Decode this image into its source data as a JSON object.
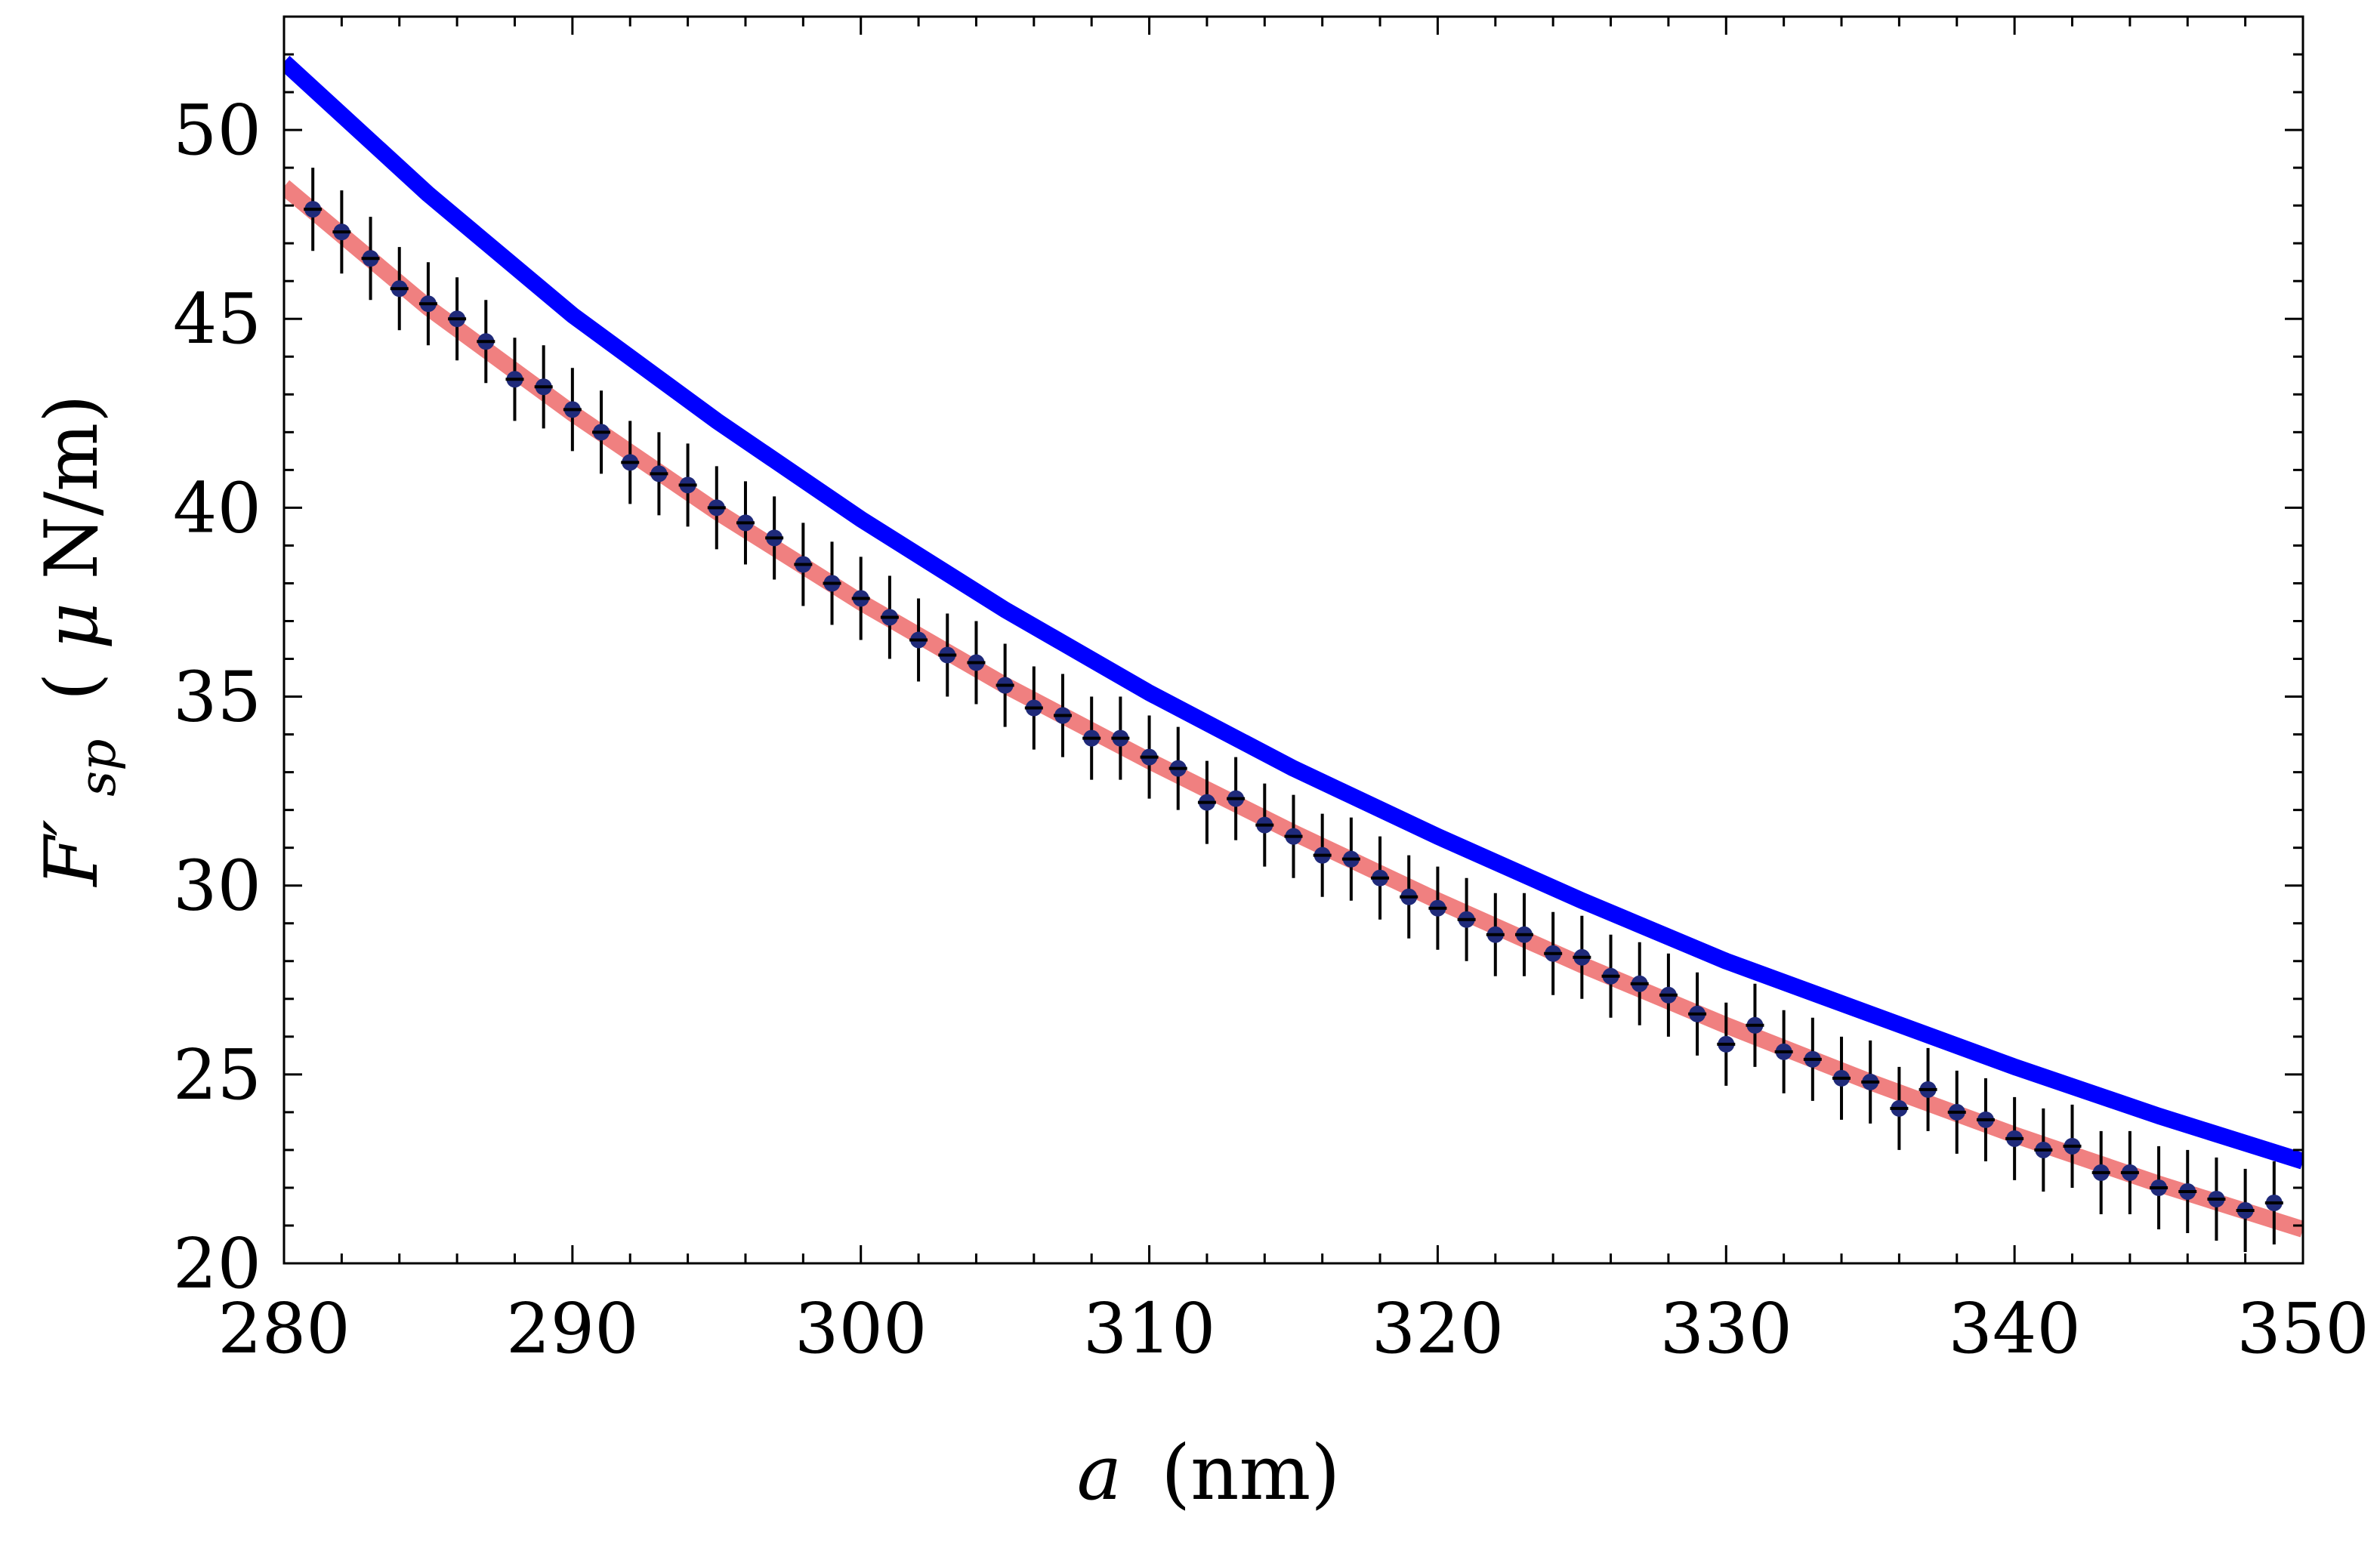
{
  "chart_data": {
    "type": "scatter",
    "xlabel": {
      "var": "a",
      "unit": "(nm)"
    },
    "ylabel": {
      "var": "F′",
      "sub": "sp",
      "pre_unit": "(",
      "mu": "μ",
      "unit": "N/m)"
    },
    "xlim": [
      280,
      350
    ],
    "ylim": [
      20,
      53
    ],
    "xticks": [
      280,
      290,
      300,
      310,
      320,
      330,
      340,
      350
    ],
    "yticks": [
      20,
      25,
      30,
      35,
      40,
      45,
      50
    ],
    "grid": false,
    "legend": "none",
    "colors": {
      "upper_curve": "#0000ff",
      "lower_curve": "#f08080",
      "points": "#1f2a7a",
      "error_bars": "#000000"
    },
    "series": [
      {
        "type": "line",
        "x": [
          280,
          285,
          290,
          295,
          300,
          305,
          310,
          315,
          320,
          325,
          330,
          335,
          340,
          345,
          350
        ],
        "y": [
          51.8,
          48.3,
          45.1,
          42.3,
          39.7,
          37.3,
          35.1,
          33.1,
          31.3,
          29.6,
          28.0,
          26.6,
          25.2,
          23.9,
          22.7
        ]
      },
      {
        "type": "line",
        "x": [
          280,
          285,
          290,
          295,
          300,
          305,
          310,
          315,
          320,
          325,
          330,
          335,
          340,
          345,
          350
        ],
        "y": [
          48.5,
          45.3,
          42.5,
          39.9,
          37.5,
          35.3,
          33.3,
          31.4,
          29.6,
          27.9,
          26.3,
          24.8,
          23.4,
          22.1,
          20.9
        ]
      },
      {
        "type": "scatter",
        "error_bar": 1.1,
        "x": [
          281,
          282,
          283,
          284,
          285,
          286,
          287,
          288,
          289,
          290,
          291,
          292,
          293,
          294,
          295,
          296,
          297,
          298,
          299,
          300,
          301,
          302,
          303,
          304,
          305,
          306,
          307,
          308,
          309,
          310,
          311,
          312,
          313,
          314,
          315,
          316,
          317,
          318,
          319,
          320,
          321,
          322,
          323,
          324,
          325,
          326,
          327,
          328,
          329,
          330,
          331,
          332,
          333,
          334,
          335,
          336,
          337,
          338,
          339,
          340,
          341,
          342,
          343,
          344,
          345,
          346,
          347,
          348,
          349
        ],
        "y": [
          47.9,
          47.3,
          46.6,
          45.8,
          45.4,
          45.0,
          44.4,
          43.4,
          43.2,
          42.6,
          42.0,
          41.2,
          40.9,
          40.6,
          40.0,
          39.6,
          39.2,
          38.5,
          38.0,
          37.6,
          37.1,
          36.5,
          36.1,
          35.9,
          35.3,
          34.7,
          34.5,
          33.9,
          33.9,
          33.4,
          33.1,
          32.2,
          32.3,
          31.6,
          31.3,
          30.8,
          30.7,
          30.2,
          29.7,
          29.4,
          29.1,
          28.7,
          28.7,
          28.2,
          28.1,
          27.6,
          27.4,
          27.1,
          26.6,
          25.8,
          26.3,
          25.6,
          25.4,
          24.9,
          24.8,
          24.1,
          24.6,
          24.0,
          23.8,
          23.3,
          23.0,
          23.1,
          22.4,
          22.4,
          22.0,
          21.9,
          21.7,
          21.4,
          21.6
        ]
      }
    ]
  }
}
